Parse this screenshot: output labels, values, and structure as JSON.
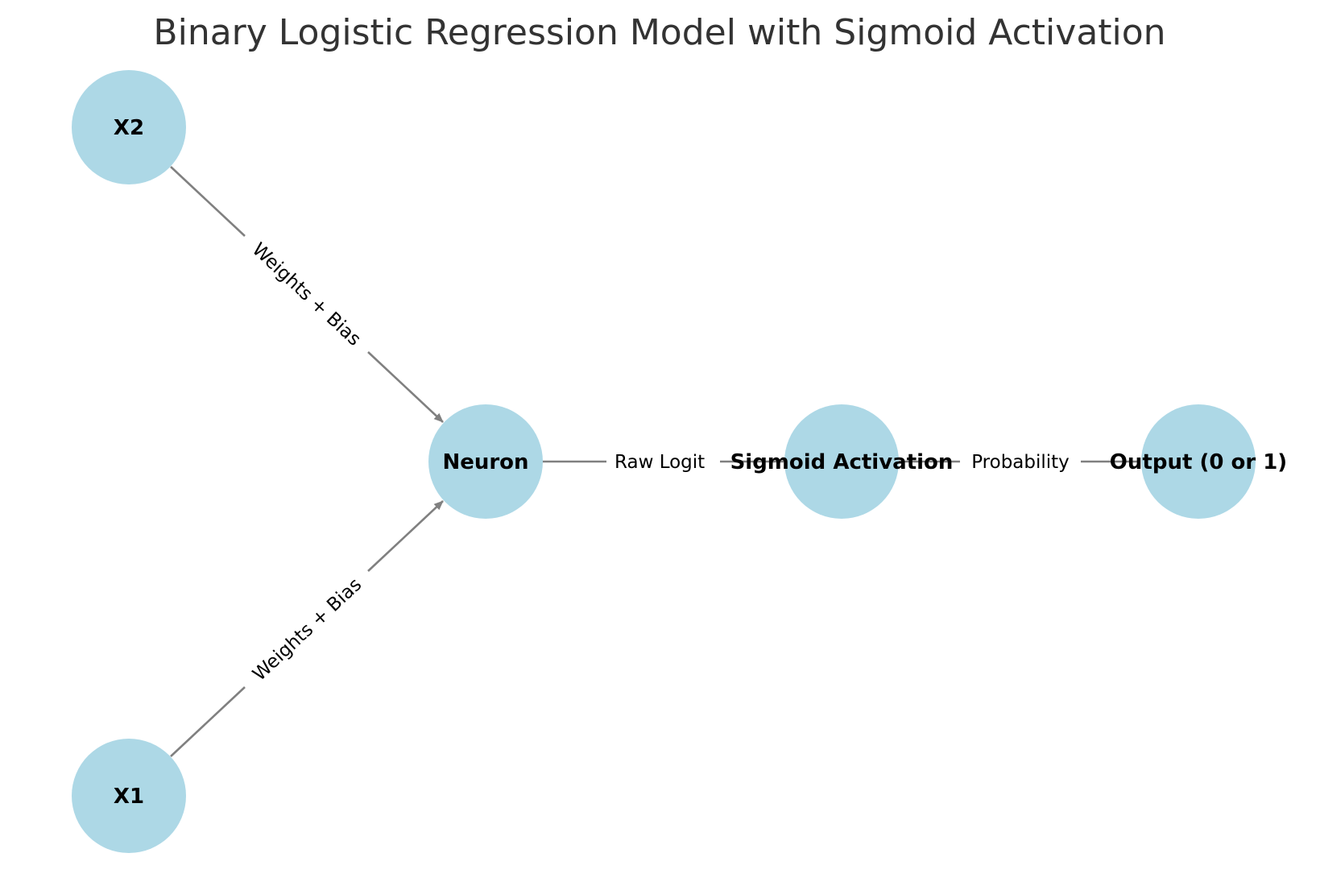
{
  "title": "Binary Logistic Regression Model with Sigmoid Activation",
  "colors": {
    "node_fill": "#ADD8E6",
    "edge": "#808080",
    "title": "#333333",
    "label": "#000000"
  },
  "nodes": {
    "x2": {
      "label": "X2"
    },
    "x1": {
      "label": "X1"
    },
    "neuron": {
      "label": "Neuron"
    },
    "sigmoid": {
      "label": "Sigmoid Activation"
    },
    "output": {
      "label": "Output (0 or 1)"
    }
  },
  "edges": {
    "x2_neuron": {
      "label": "Weights + Bias"
    },
    "x1_neuron": {
      "label": "Weights + Bias"
    },
    "neuron_sigmoid": {
      "label": "Raw Logit"
    },
    "sigmoid_output": {
      "label": "Probability"
    }
  }
}
